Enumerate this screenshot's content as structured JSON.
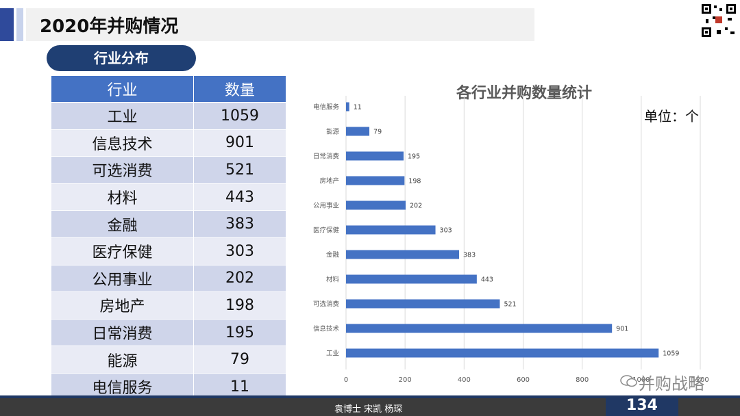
{
  "header": {
    "title": "2020年并购情况"
  },
  "section": {
    "label": "行业分布"
  },
  "table": {
    "headers": [
      "行业",
      "数量"
    ],
    "rows": [
      [
        "工业",
        "1059"
      ],
      [
        "信息技术",
        "901"
      ],
      [
        "可选消费",
        "521"
      ],
      [
        "材料",
        "443"
      ],
      [
        "金融",
        "383"
      ],
      [
        "医疗保健",
        "303"
      ],
      [
        "公用事业",
        "202"
      ],
      [
        "房地产",
        "198"
      ],
      [
        "日常消费",
        "195"
      ],
      [
        "能源",
        "79"
      ],
      [
        "电信服务",
        "11"
      ]
    ]
  },
  "chart_data": {
    "type": "bar",
    "orientation": "horizontal",
    "title": "各行业并购数量统计",
    "unit_label": "单位：个",
    "categories": [
      "电信服务",
      "能源",
      "日常消费",
      "房地产",
      "公用事业",
      "医疗保健",
      "金融",
      "材料",
      "可选消费",
      "信息技术",
      "工业"
    ],
    "values": [
      11,
      79,
      195,
      198,
      202,
      303,
      383,
      443,
      521,
      901,
      1059
    ],
    "xlim": [
      0,
      1200
    ],
    "xticks": [
      0,
      200,
      400,
      600,
      800,
      1000,
      1200
    ],
    "grid": true,
    "bar_color": "#4472c4"
  },
  "footer": {
    "authors": "袁博士  宋凯  杨琛",
    "page": "134",
    "watermark": "并购战略"
  },
  "colors": {
    "accent": "#2f4a9b",
    "pill": "#1f3f73",
    "table_header": "#4472c4"
  }
}
